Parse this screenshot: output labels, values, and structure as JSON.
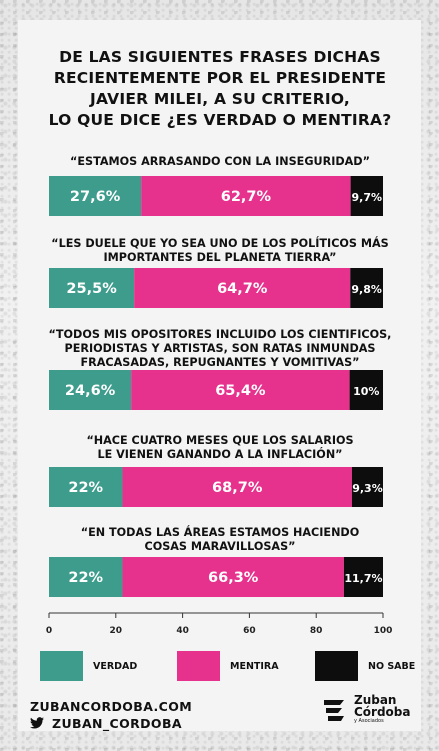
{
  "title_lines": [
    "DE LAS SIGUIENTES FRASES DICHAS",
    "RECIENTEMENTE POR EL PRESIDENTE",
    "JAVIER MILEI, A SU CRITERIO,",
    "LO QUE DICE ¿ES VERDAD O MENTIRA?"
  ],
  "quotes": [
    [
      "“ESTAMOS ARRASANDO CON LA INSEGURIDAD”"
    ],
    [
      "“LES DUELE QUE YO SEA UNO DE LOS POLÍTICOS MÁS",
      "IMPORTANTES DEL PLANETA TIERRA”"
    ],
    [
      "“TODOS MIS OPOSITORES INCLUIDO LOS CIENTIFICOS,",
      "PERIODISTAS Y ARTISTAS, SON RATAS INMUNDAS",
      "FRACASADAS, REPUGNANTES Y VOMITIVAS”"
    ],
    [
      "“HACE CUATRO MESES QUE LOS SALARIOS",
      "LE VIENEN GANANDO A LA INFLACIÓN”"
    ],
    [
      "“EN TODAS LAS ÁREAS ESTAMOS HACIENDO",
      "COSAS MARAVILLOSAS”"
    ]
  ],
  "chart_data": {
    "type": "bar",
    "orientation": "horizontal",
    "stacked": true,
    "categories": [
      "“ESTAMOS ARRASANDO CON LA INSEGURIDAD”",
      "“LES DUELE QUE YO SEA UNO DE LOS POLÍTICOS MÁS IMPORTANTES DEL PLANETA TIERRA”",
      "“TODOS MIS OPOSITORES INCLUIDO LOS CIENTIFICOS, PERIODISTAS Y ARTISTAS, SON RATAS INMUNDAS FRACASADAS, REPUGNANTES Y VOMITIVAS”",
      "“HACE CUATRO MESES QUE LOS SALARIOS LE VIENEN GANANDO A LA INFLACIÓN”",
      "“EN TODAS LAS ÁREAS ESTAMOS HACIENDO COSAS MARAVILLOSAS”"
    ],
    "series": [
      {
        "name": "VERDAD",
        "color": "#3d9c8c",
        "values": [
          27.6,
          25.5,
          24.6,
          22,
          22
        ],
        "labels": [
          "27,6%",
          "25,5%",
          "24,6%",
          "22%",
          "22%"
        ]
      },
      {
        "name": "MENTIRA",
        "color": "#e6328c",
        "values": [
          62.7,
          64.7,
          65.4,
          68.7,
          66.3
        ],
        "labels": [
          "62,7%",
          "64,7%",
          "65,4%",
          "68,7%",
          "66,3%"
        ]
      },
      {
        "name": "NO SABE",
        "color": "#0d0d0d",
        "values": [
          9.7,
          9.8,
          10,
          9.3,
          11.7
        ],
        "labels": [
          "9,7%",
          "9,8%",
          "10%",
          "9,3%",
          "11,7%"
        ]
      }
    ],
    "xlim": [
      0,
      100
    ],
    "xticks": [
      0,
      20,
      40,
      60,
      80,
      100
    ],
    "grid": false,
    "legend_position": "bottom"
  },
  "footer": {
    "website": "ZUBANCORDOBA.COM",
    "twitter": "ZUBAN_CORDOBA"
  },
  "logo": {
    "line1": "Zuban",
    "line2": "Córdoba",
    "line3": "y Asociados"
  }
}
